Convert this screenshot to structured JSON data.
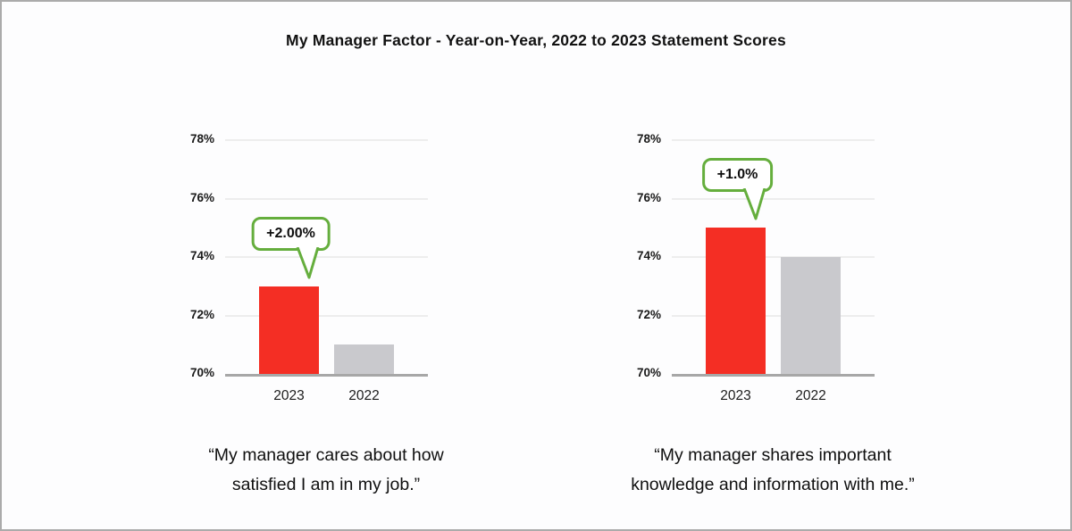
{
  "title": "My Manager Factor - Year-on-Year, 2022 to 2023 Statement Scores",
  "colors": {
    "bar_2023": "#f42e24",
    "bar_2022": "#c9c9cd",
    "callout_green": "#65ae3d",
    "gridline": "#ededed",
    "baseline": "#a7a7a7"
  },
  "chart_data": [
    {
      "type": "bar",
      "categories": [
        "2023",
        "2022"
      ],
      "values": [
        73,
        71
      ],
      "bar_colors": [
        "#f42e24",
        "#c9c9cd"
      ],
      "yticks": [
        78,
        76,
        74,
        72,
        70
      ],
      "ytick_labels": [
        "78%",
        "76%",
        "74%",
        "72%",
        "70%"
      ],
      "ylim": [
        70,
        78
      ],
      "grid": true,
      "annotation": {
        "text": "+2.00%",
        "bar_index": 0
      },
      "caption": "“My manager cares about how satisfied I am in my job.”",
      "caption_lines": [
        "“My manager cares about how",
        "satisfied I am in my job.”"
      ]
    },
    {
      "type": "bar",
      "categories": [
        "2023",
        "2022"
      ],
      "values": [
        75,
        74
      ],
      "bar_colors": [
        "#f42e24",
        "#c9c9cd"
      ],
      "yticks": [
        78,
        76,
        74,
        72,
        70
      ],
      "ytick_labels": [
        "78%",
        "76%",
        "74%",
        "72%",
        "70%"
      ],
      "ylim": [
        70,
        78
      ],
      "grid": true,
      "annotation": {
        "text": "+1.0%",
        "bar_index": 0
      },
      "caption": "“My manager shares important knowledge and information with me.”",
      "caption_lines": [
        "“My manager shares important",
        "knowledge and information with me.”"
      ]
    }
  ]
}
